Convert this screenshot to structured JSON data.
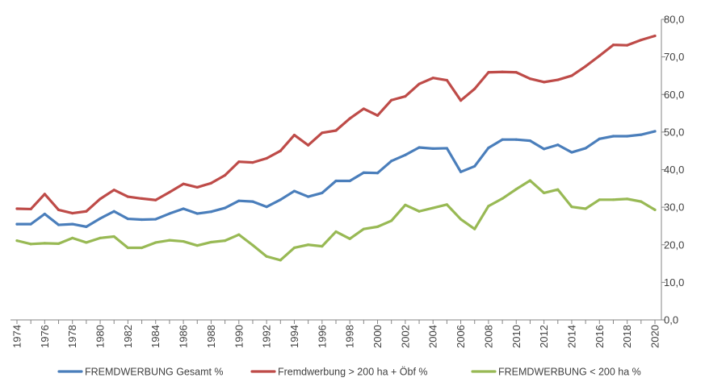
{
  "chart_data": {
    "type": "line",
    "title": "",
    "xlabel": "",
    "ylabel": "",
    "ylim": [
      0,
      80
    ],
    "y_ticks": [
      "0,0",
      "10,0",
      "20,0",
      "30,0",
      "40,0",
      "50,0",
      "60,0",
      "70,0",
      "80,0"
    ],
    "y_axis_position": "right",
    "grid": false,
    "legend_position": "bottom",
    "x": [
      1974,
      1975,
      1976,
      1977,
      1978,
      1979,
      1980,
      1981,
      1982,
      1983,
      1984,
      1985,
      1986,
      1987,
      1988,
      1989,
      1990,
      1991,
      1992,
      1993,
      1994,
      1995,
      1996,
      1997,
      1998,
      1999,
      2000,
      2001,
      2002,
      2003,
      2004,
      2005,
      2006,
      2007,
      2008,
      2009,
      2010,
      2011,
      2012,
      2013,
      2014,
      2015,
      2016,
      2017,
      2018,
      2019,
      2020
    ],
    "x_tick_labels": [
      "1974",
      "1976",
      "1978",
      "1980",
      "1982",
      "1984",
      "1986",
      "1988",
      "1990",
      "1992",
      "1994",
      "1996",
      "1998",
      "2000",
      "2002",
      "2004",
      "2006",
      "2008",
      "2010",
      "2012",
      "2014",
      "2016",
      "2018",
      "2020"
    ],
    "series": [
      {
        "name": "FREMDWERBUNG Gesamt %",
        "color": "#4a7ebb",
        "values": [
          25.5,
          25.5,
          28.2,
          25.3,
          25.5,
          24.8,
          27.0,
          28.9,
          26.9,
          26.7,
          26.8,
          28.3,
          29.6,
          28.3,
          28.8,
          29.8,
          31.7,
          31.5,
          30.1,
          32.0,
          34.3,
          32.8,
          33.8,
          37.0,
          37.0,
          39.2,
          39.1,
          42.3,
          43.9,
          45.9,
          45.6,
          45.7,
          39.4,
          40.9,
          45.8,
          48.0,
          48.0,
          47.7,
          45.5,
          46.6,
          44.6,
          45.7,
          48.2,
          48.9,
          48.9,
          49.3,
          50.2
        ]
      },
      {
        "name": "Fremdwerbung > 200 ha + Öbf %",
        "color": "#be4b48",
        "values": [
          29.6,
          29.5,
          33.5,
          29.3,
          28.4,
          28.9,
          32.2,
          34.6,
          32.8,
          32.3,
          31.9,
          34.0,
          36.2,
          35.3,
          36.4,
          38.5,
          42.1,
          41.9,
          43.0,
          45.0,
          49.2,
          46.5,
          49.8,
          50.4,
          53.6,
          56.2,
          54.4,
          58.5,
          59.5,
          62.8,
          64.4,
          63.8,
          58.4,
          61.5,
          65.9,
          66.0,
          65.9,
          64.2,
          63.3,
          63.9,
          65.0,
          67.5,
          70.3,
          73.2,
          73.1,
          74.5,
          75.6
        ]
      },
      {
        "name": "FREMDWERBUNG < 200 ha %",
        "color": "#98b954",
        "values": [
          21.1,
          20.2,
          20.4,
          20.3,
          21.8,
          20.6,
          21.8,
          22.2,
          19.2,
          19.2,
          20.6,
          21.2,
          20.9,
          19.8,
          20.7,
          21.1,
          22.7,
          19.9,
          16.9,
          15.9,
          19.2,
          20.0,
          19.6,
          23.5,
          21.6,
          24.2,
          24.8,
          26.4,
          30.6,
          28.9,
          29.8,
          30.7,
          26.8,
          24.2,
          30.3,
          32.3,
          34.8,
          37.1,
          33.8,
          34.7,
          30.1,
          29.6,
          32.0,
          32.0,
          32.2,
          31.5,
          29.3
        ]
      }
    ]
  }
}
